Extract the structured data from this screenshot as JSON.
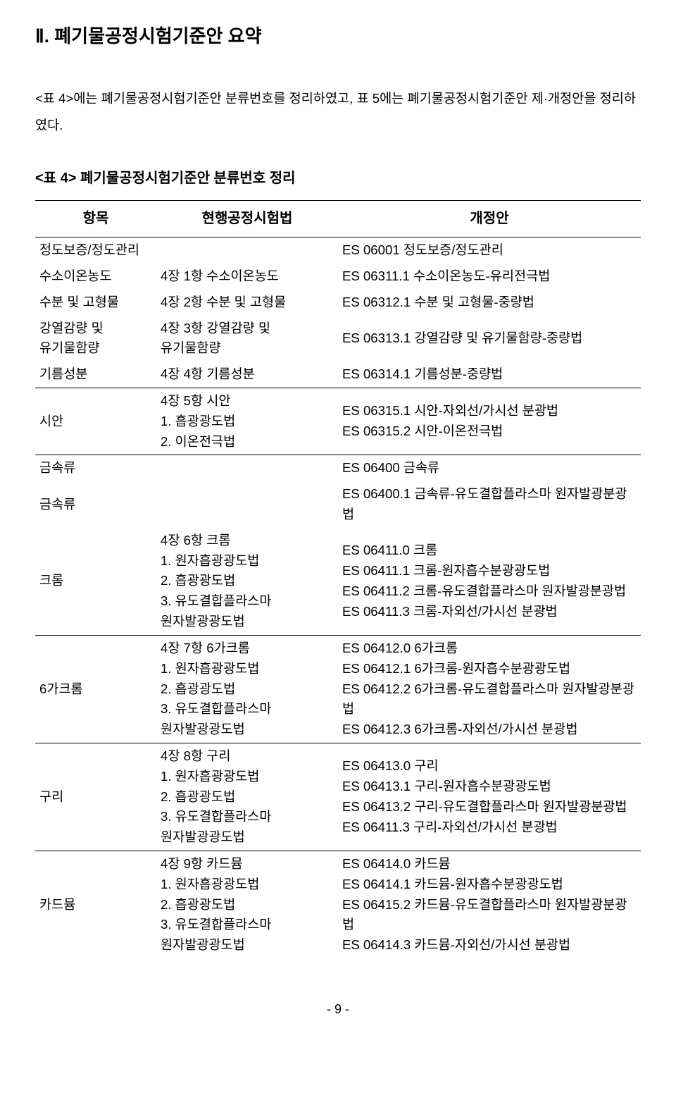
{
  "section_title": "Ⅱ. 폐기물공정시험기준안 요약",
  "intro": "   <표 4>에는 폐기물공정시험기준안 분류번호를 정리하였고, 표 5에는 폐기물공정시험기준안 제·개정안을 정리하였다.",
  "table_caption": "<표 4> 폐기물공정시험기준안 분류번호 정리",
  "headers": {
    "c0": "항목",
    "c1": "현행공정시험법",
    "c2": "개정안"
  },
  "rows": [
    {
      "c0": "정도보증/정도관리",
      "c1": "",
      "c2": "ES 06001 정도보증/정도관리",
      "sep": false
    },
    {
      "c0": "수소이온농도",
      "c1": "4장 1항 수소이온농도",
      "c2": "ES 06311.1 수소이온농도-유리전극법",
      "sep": false
    },
    {
      "c0": "수분 및 고형물",
      "c1": "4장 2항 수분 및 고형물",
      "c2": "ES 06312.1 수분 및 고형물-중량법",
      "sep": false
    },
    {
      "c0": "강열감량 및\n유기물함량",
      "c1": "4장 3항 강열감량 및\n  유기물함량",
      "c2": "ES 06313.1 강열감량 및 유기물함량-중량법",
      "sep": false
    },
    {
      "c0": "기름성분",
      "c1": "4장 4항 기름성분",
      "c2": "ES 06314.1 기름성분-중량법",
      "sep": true
    },
    {
      "c0": "시안",
      "c1": "4장 5항 시안\n1. 흡광광도법\n2. 이온전극법",
      "c2": "ES 06315.1 시안-자외선/가시선 분광법\nES 06315.2 시안-이온전극법",
      "sep": true
    },
    {
      "c0": "금속류",
      "c1": "",
      "c2": "ES 06400 금속류",
      "sep": false
    },
    {
      "c0": "금속류",
      "c1": "",
      "c2": "ES 06400.1 금속류-유도결합플라스마 원자발광분광법",
      "sep": false
    },
    {
      "c0": " 크롬",
      "c1": "4장 6항 크롬\n1. 원자흡광광도법\n2. 흡광광도법\n3. 유도결합플라스마\n  원자발광광도법",
      "c2": "ES 06411.0 크롬\nES 06411.1 크롬-원자흡수분광광도법\nES 06411.2 크롬-유도결합플라스마 원자발광분광법\nES 06411.3 크롬-자외선/가시선 분광법",
      "sep": true
    },
    {
      "c0": "6가크롬",
      "c1": "4장 7항 6가크롬\n1. 원자흡광광도법\n2. 흡광광도법\n3. 유도결합플라스마\n  원자발광광도법",
      "c2": "ES 06412.0 6가크롬\nES 06412.1 6가크롬-원자흡수분광광도법\nES 06412.2 6가크롬-유도결합플라스마 원자발광분광법\nES 06412.3 6가크롬-자외선/가시선 분광법",
      "sep": true
    },
    {
      "c0": "구리",
      "c1": "4장 8항 구리\n1. 원자흡광광도법\n2. 흡광광도법\n3. 유도결합플라스마\n  원자발광광도법",
      "c2": "ES 06413.0 구리\nES 06413.1 구리-원자흡수분광광도법\nES 06413.2 구리-유도결합플라스마 원자발광분광법\nES 06411.3 구리-자외선/가시선 분광법",
      "sep": true
    },
    {
      "c0": "카드뮴",
      "c1": "4장 9항 카드뮴\n1. 원자흡광광도법\n2. 흡광광도법\n3. 유도결합플라스마\n  원자발광광도법",
      "c2": "ES 06414.0 카드뮴\nES 06414.1 카드뮴-원자흡수분광광도법\nES 06415.2 카드뮴-유도결합플라스마 원자발광분광법\nES 06414.3 카드뮴-자외선/가시선 분광법",
      "sep": false
    }
  ],
  "page_number": "- 9 -"
}
